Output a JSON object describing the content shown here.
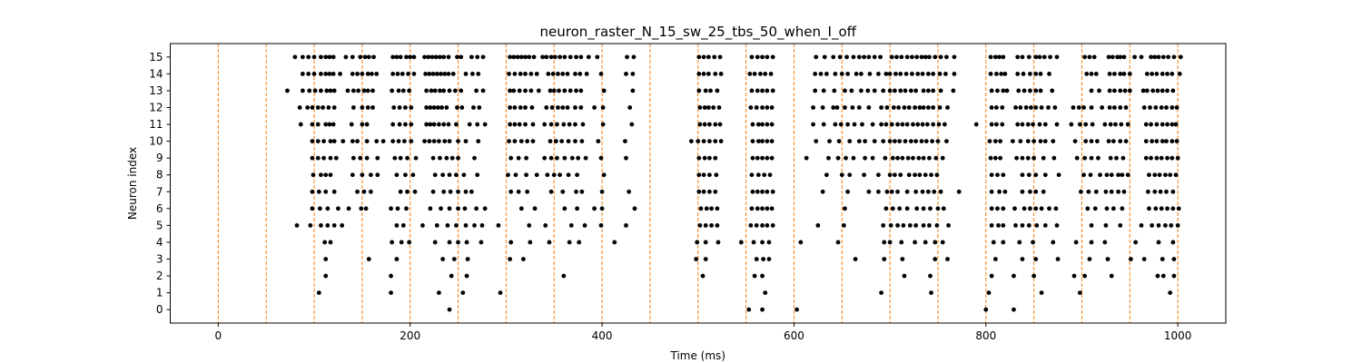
{
  "chart_data": {
    "type": "scatter",
    "title": "neuron_raster_N_15_sw_25_tbs_50_when_I_off",
    "xlabel": "Time (ms)",
    "ylabel": "Neuron index",
    "xlim": [
      -50,
      1050
    ],
    "ylim": [
      -0.8,
      15.8
    ],
    "x_ticks": [
      0,
      200,
      400,
      600,
      800,
      1000
    ],
    "y_ticks": [
      0,
      1,
      2,
      3,
      4,
      5,
      6,
      7,
      8,
      9,
      10,
      11,
      12,
      13,
      14,
      15
    ],
    "grid": false,
    "colors": {
      "spike": "#000000",
      "bin_line": "#ff7f0e"
    },
    "vertical_lines": {
      "style": "dashed",
      "x": [
        0,
        50,
        100,
        150,
        200,
        250,
        300,
        350,
        400,
        450,
        500,
        550,
        600,
        650,
        700,
        750,
        800,
        850,
        900,
        950,
        1000
      ]
    },
    "series": [
      {
        "neuron": 15,
        "times": [
          80,
          88,
          94,
          100,
          107,
          112,
          116,
          120,
          133,
          140,
          148,
          153,
          157,
          162,
          182,
          186,
          190,
          196,
          200,
          204,
          215,
          219,
          223,
          227,
          231,
          235,
          240,
          249,
          253,
          264,
          270,
          276,
          304,
          308,
          312,
          316,
          320,
          324,
          329,
          338,
          342,
          347,
          351,
          356,
          361,
          367,
          373,
          378,
          386,
          395,
          426,
          433,
          501,
          506,
          511,
          517,
          523,
          556,
          562,
          567,
          572,
          578,
          623,
          632,
          641,
          648,
          655,
          662,
          668,
          673,
          678,
          684,
          690,
          702,
          707,
          712,
          718,
          723,
          728,
          733,
          737,
          741,
          747,
          753,
          759,
          767,
          805,
          810,
          814,
          818,
          833,
          838,
          845,
          852,
          856,
          861,
          867,
          874,
          903,
          908,
          913,
          928,
          932,
          937,
          940,
          944,
          955,
          962,
          972,
          976,
          980,
          985,
          990,
          996,
          1003
        ]
      },
      {
        "neuron": 14,
        "times": [
          88,
          94,
          100,
          107,
          112,
          116,
          120,
          127,
          140,
          145,
          150,
          156,
          160,
          165,
          182,
          187,
          192,
          198,
          204,
          216,
          220,
          224,
          228,
          232,
          236,
          240,
          245,
          258,
          265,
          271,
          303,
          309,
          315,
          320,
          326,
          332,
          344,
          349,
          354,
          359,
          364,
          372,
          377,
          384,
          399,
          425,
          432,
          501,
          506,
          511,
          518,
          524,
          554,
          559,
          565,
          570,
          576,
          622,
          628,
          634,
          643,
          650,
          656,
          665,
          670,
          679,
          688,
          696,
          700,
          706,
          711,
          717,
          723,
          729,
          734,
          740,
          745,
          752,
          758,
          767,
          805,
          811,
          816,
          820,
          833,
          839,
          846,
          852,
          857,
          866,
          905,
          910,
          915,
          929,
          934,
          940,
          944,
          950,
          968,
          973,
          978,
          984,
          989,
          994,
          1002
        ]
      },
      {
        "neuron": 13,
        "times": [
          72,
          88,
          95,
          101,
          107,
          113,
          117,
          121,
          135,
          141,
          146,
          152,
          156,
          161,
          181,
          188,
          193,
          199,
          217,
          222,
          226,
          231,
          235,
          241,
          247,
          253,
          269,
          276,
          304,
          308,
          314,
          320,
          326,
          334,
          346,
          350,
          355,
          361,
          367,
          373,
          378,
          402,
          432,
          501,
          508,
          513,
          520,
          556,
          562,
          567,
          572,
          578,
          622,
          631,
          642,
          653,
          660,
          670,
          677,
          684,
          693,
          700,
          705,
          711,
          716,
          722,
          727,
          735,
          740,
          745,
          753,
          766,
          806,
          812,
          818,
          822,
          834,
          840,
          846,
          852,
          857,
          869,
          910,
          918,
          929,
          934,
          940,
          945,
          950,
          964,
          968,
          974,
          979,
          984,
          989,
          995
        ]
      },
      {
        "neuron": 12,
        "times": [
          85,
          93,
          98,
          104,
          109,
          115,
          121,
          141,
          150,
          156,
          161,
          183,
          189,
          195,
          201,
          217,
          221,
          225,
          229,
          233,
          238,
          249,
          254,
          266,
          272,
          304,
          309,
          315,
          320,
          327,
          342,
          348,
          354,
          359,
          364,
          372,
          378,
          392,
          401,
          429,
          502,
          507,
          511,
          516,
          522,
          555,
          561,
          567,
          572,
          577,
          620,
          630,
          641,
          645,
          653,
          661,
          668,
          678,
          691,
          697,
          704,
          709,
          715,
          720,
          726,
          731,
          735,
          740,
          745,
          752,
          760,
          806,
          811,
          817,
          831,
          836,
          842,
          847,
          852,
          858,
          865,
          872,
          891,
          897,
          902,
          910,
          921,
          929,
          934,
          940,
          946,
          965,
          971,
          977,
          983,
          988,
          994,
          999
        ]
      },
      {
        "neuron": 11,
        "times": [
          86,
          98,
          104,
          112,
          116,
          120,
          139,
          150,
          155,
          182,
          189,
          195,
          201,
          217,
          221,
          225,
          230,
          235,
          240,
          248,
          262,
          270,
          278,
          304,
          309,
          314,
          320,
          328,
          340,
          347,
          353,
          360,
          366,
          372,
          380,
          401,
          431,
          502,
          507,
          512,
          518,
          523,
          557,
          563,
          567,
          572,
          577,
          620,
          631,
          643,
          649,
          656,
          663,
          671,
          682,
          691,
          696,
          702,
          708,
          713,
          718,
          724,
          729,
          734,
          739,
          745,
          751,
          757,
          790,
          806,
          811,
          817,
          833,
          838,
          844,
          849,
          856,
          862,
          874,
          889,
          898,
          904,
          911,
          924,
          930,
          935,
          941,
          948,
          967,
          972,
          978,
          984,
          989,
          994,
          998
        ]
      },
      {
        "neuron": 10,
        "times": [
          98,
          104,
          110,
          117,
          121,
          130,
          140,
          145,
          155,
          165,
          172,
          182,
          188,
          194,
          201,
          215,
          220,
          225,
          230,
          236,
          241,
          250,
          258,
          271,
          303,
          309,
          316,
          322,
          328,
          346,
          352,
          358,
          365,
          372,
          379,
          396,
          424,
          493,
          500,
          506,
          512,
          518,
          524,
          557,
          563,
          567,
          572,
          577,
          623,
          637,
          647,
          658,
          668,
          674,
          684,
          693,
          700,
          705,
          710,
          716,
          722,
          727,
          733,
          738,
          744,
          750,
          759,
          804,
          810,
          815,
          828,
          836,
          844,
          850,
          857,
          862,
          870,
          893,
          904,
          910,
          916,
          928,
          933,
          940,
          946,
          967,
          973,
          978,
          984,
          988,
          994,
          999
        ]
      },
      {
        "neuron": 9,
        "times": [
          98,
          104,
          110,
          117,
          123,
          141,
          148,
          155,
          166,
          184,
          190,
          197,
          206,
          224,
          231,
          238,
          244,
          250,
          267,
          305,
          313,
          321,
          340,
          347,
          353,
          361,
          369,
          375,
          383,
          399,
          425,
          501,
          507,
          512,
          518,
          557,
          562,
          567,
          572,
          577,
          613,
          636,
          646,
          654,
          662,
          674,
          682,
          695,
          703,
          708,
          713,
          719,
          724,
          730,
          735,
          741,
          748,
          755,
          805,
          810,
          815,
          832,
          838,
          844,
          850,
          860,
          871,
          895,
          903,
          910,
          917,
          930,
          936,
          943,
          967,
          972,
          978,
          983,
          989,
          994,
          1000
        ]
      },
      {
        "neuron": 8,
        "times": [
          99,
          107,
          112,
          117,
          140,
          150,
          159,
          166,
          186,
          195,
          203,
          226,
          234,
          241,
          248,
          256,
          270,
          302,
          310,
          321,
          332,
          343,
          350,
          356,
          365,
          374,
          402,
          501,
          506,
          512,
          519,
          556,
          563,
          569,
          575,
          634,
          650,
          658,
          673,
          688,
          700,
          705,
          711,
          720,
          726,
          731,
          737,
          743,
          749,
          806,
          812,
          818,
          838,
          845,
          852,
          862,
          876,
          902,
          909,
          919,
          926,
          931,
          938,
          942,
          948,
          970,
          976,
          981,
          987,
          992,
          998
        ]
      },
      {
        "neuron": 7,
        "times": [
          98,
          105,
          112,
          121,
          145,
          152,
          159,
          190,
          197,
          205,
          224,
          235,
          242,
          250,
          258,
          264,
          305,
          313,
          322,
          347,
          359,
          373,
          379,
          400,
          428,
          501,
          506,
          512,
          518,
          557,
          562,
          567,
          572,
          578,
          630,
          656,
          678,
          688,
          697,
          702,
          708,
          718,
          727,
          734,
          740,
          746,
          753,
          772,
          806,
          814,
          820,
          838,
          846,
          852,
          860,
          899,
          907,
          915,
          925,
          931,
          938,
          944,
          969,
          976,
          982,
          988,
          995
        ]
      },
      {
        "neuron": 6,
        "times": [
          98,
          106,
          114,
          125,
          136,
          149,
          154,
          180,
          187,
          196,
          221,
          232,
          241,
          250,
          257,
          269,
          278,
          316,
          330,
          361,
          374,
          392,
          400,
          434,
          503,
          509,
          514,
          520,
          556,
          562,
          567,
          572,
          577,
          653,
          696,
          703,
          710,
          718,
          728,
          735,
          742,
          750,
          756,
          806,
          812,
          818,
          830,
          840,
          846,
          852,
          858,
          866,
          873,
          906,
          914,
          926,
          933,
          942,
          970,
          977,
          983,
          989,
          995,
          1001
        ]
      },
      {
        "neuron": 5,
        "times": [
          82,
          96,
          107,
          114,
          121,
          129,
          186,
          193,
          213,
          228,
          239,
          248,
          258,
          267,
          275,
          292,
          324,
          341,
          368,
          382,
          399,
          425,
          502,
          508,
          514,
          520,
          555,
          561,
          567,
          572,
          578,
          625,
          652,
          693,
          701,
          708,
          714,
          721,
          727,
          735,
          741,
          749,
          761,
          806,
          813,
          818,
          831,
          838,
          845,
          853,
          862,
          874,
          910,
          925,
          940,
          962,
          973,
          980,
          987,
          993,
          1000
        ]
      },
      {
        "neuron": 4,
        "times": [
          111,
          117,
          181,
          191,
          199,
          226,
          241,
          250,
          259,
          274,
          305,
          325,
          345,
          366,
          376,
          413,
          499,
          508,
          521,
          545,
          558,
          567,
          574,
          607,
          646,
          694,
          700,
          712,
          726,
          737,
          747,
          755,
          808,
          818,
          835,
          849,
          870,
          894,
          910,
          924,
          956,
          980,
          995
        ]
      },
      {
        "neuron": 3,
        "times": [
          112,
          157,
          186,
          234,
          246,
          260,
          304,
          318,
          498,
          508,
          561,
          568,
          574,
          664,
          694,
          713,
          747,
          760,
          810,
          838,
          852,
          875,
          908,
          927,
          951,
          965,
          984,
          996
        ]
      },
      {
        "neuron": 2,
        "times": [
          112,
          180,
          243,
          259,
          360,
          505,
          559,
          567,
          715,
          742,
          806,
          829,
          850,
          892,
          903,
          931,
          979,
          985,
          996
        ]
      },
      {
        "neuron": 1,
        "times": [
          105,
          180,
          230,
          255,
          294,
          570,
          691,
          743,
          803,
          858,
          898,
          992
        ]
      },
      {
        "neuron": 0,
        "times": [
          241,
          553,
          567,
          603,
          800,
          829
        ]
      }
    ]
  }
}
